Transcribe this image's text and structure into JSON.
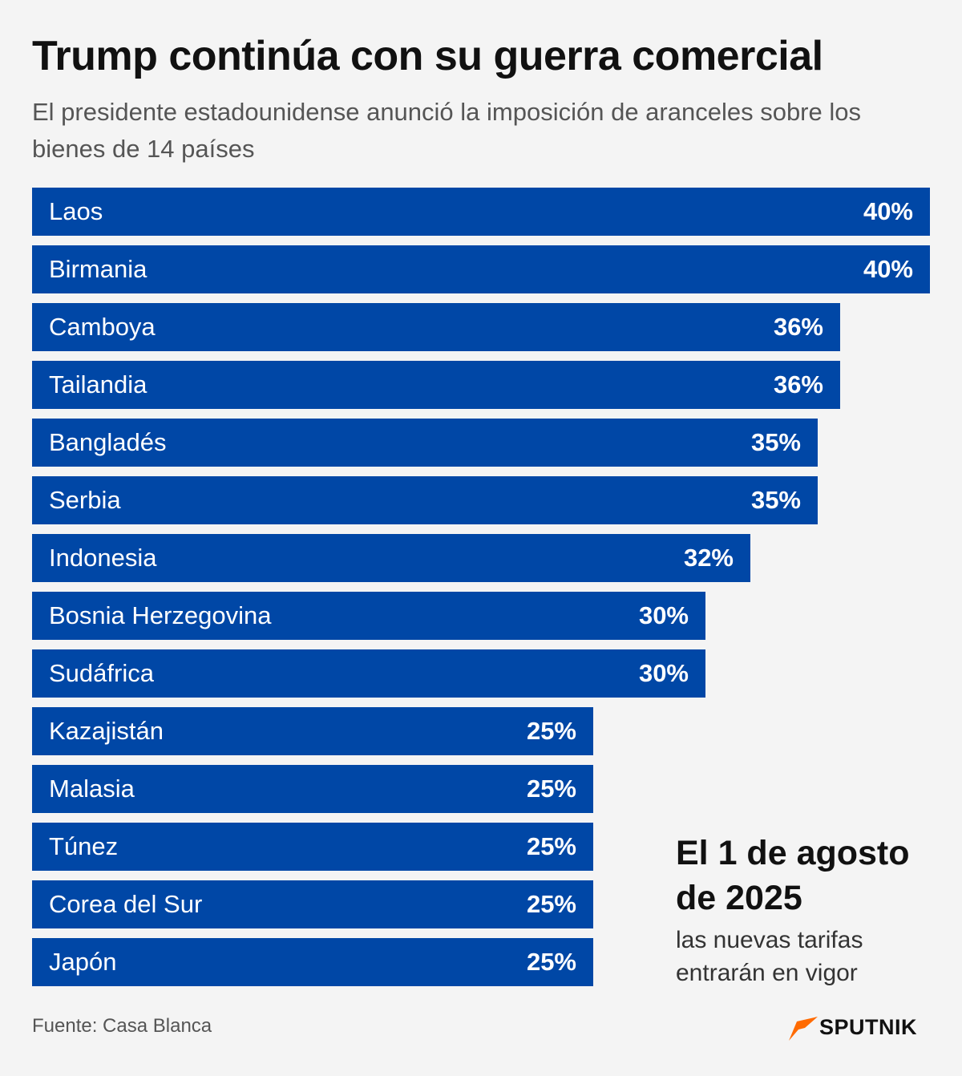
{
  "title": "Trump continúa con su guerra comercial",
  "subtitle": "El presidente estadounidense anunció la imposición de aranceles sobre los bienes de 14 países",
  "chart_data": {
    "type": "bar",
    "orientation": "horizontal",
    "categories": [
      "Laos",
      "Birmania",
      "Camboya",
      "Tailandia",
      "Bangladés",
      "Serbia",
      "Indonesia",
      "Bosnia Herzegovina",
      "Sudáfrica",
      "Kazajistán",
      "Malasia",
      "Túnez",
      "Corea del Sur",
      "Japón"
    ],
    "values": [
      40,
      40,
      36,
      36,
      35,
      35,
      32,
      30,
      30,
      25,
      25,
      25,
      25,
      25
    ],
    "value_labels": [
      "40%",
      "40%",
      "36%",
      "36%",
      "35%",
      "35%",
      "32%",
      "30%",
      "30%",
      "25%",
      "25%",
      "25%",
      "25%",
      "25%"
    ],
    "xlim": [
      0,
      40
    ],
    "bar_color": "#0047a6",
    "grid": false
  },
  "note": {
    "title": "El 1 de agosto de 2025",
    "text": "las nuevas tarifas entrarán en vigor"
  },
  "source": "Fuente: Casa Blanca",
  "brand": {
    "name": "SPUTNIK",
    "accent_color": "#ff6a00",
    "icon": "sputnik-logo-icon"
  }
}
